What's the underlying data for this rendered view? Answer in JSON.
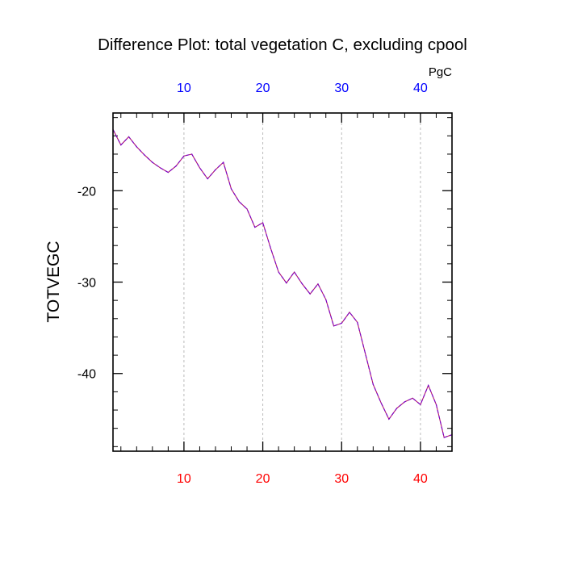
{
  "chart_data": {
    "type": "line",
    "title": "Difference Plot: total vegetation C, excluding cpool",
    "ylabel": "TOTVEGC",
    "xlabel": "",
    "units_label": "PgC",
    "xlim": [
      1,
      44
    ],
    "ylim": [
      -48.5,
      -11.5
    ],
    "x_major_ticks": [
      10,
      20,
      30,
      40
    ],
    "x_minor_step": 2,
    "y_major_ticks": [
      -20,
      -30,
      -40
    ],
    "y_minor_step": 2,
    "grid_vertical_dashed": true,
    "colors": {
      "line_primary": "#7a00c8",
      "line_secondary": "#b01a6a",
      "bottom_ticks": "#ff0000",
      "top_ticks": "#0000ff",
      "grid": "#bbbbbb",
      "text": "#000000"
    },
    "series": [
      {
        "values": [
          [
            1,
            -13.3
          ],
          [
            2,
            -15.0
          ],
          [
            3,
            -14.1
          ],
          [
            4,
            -15.2
          ],
          [
            5,
            -16.1
          ],
          [
            6,
            -16.9
          ],
          [
            7,
            -17.5
          ],
          [
            8,
            -18.0
          ],
          [
            9,
            -17.3
          ],
          [
            10,
            -16.2
          ],
          [
            11,
            -16.0
          ],
          [
            12,
            -17.5
          ],
          [
            13,
            -18.7
          ],
          [
            14,
            -17.7
          ],
          [
            15,
            -16.9
          ],
          [
            16,
            -19.8
          ],
          [
            17,
            -21.2
          ],
          [
            18,
            -22.0
          ],
          [
            19,
            -24.0
          ],
          [
            20,
            -23.5
          ],
          [
            21,
            -26.3
          ],
          [
            22,
            -28.9
          ],
          [
            23,
            -30.1
          ],
          [
            24,
            -28.9
          ],
          [
            25,
            -30.2
          ],
          [
            26,
            -31.3
          ],
          [
            27,
            -30.2
          ],
          [
            28,
            -31.9
          ],
          [
            29,
            -34.8
          ],
          [
            30,
            -34.5
          ],
          [
            31,
            -33.3
          ],
          [
            32,
            -34.4
          ],
          [
            33,
            -37.8
          ],
          [
            34,
            -41.2
          ],
          [
            35,
            -43.2
          ],
          [
            36,
            -45.0
          ],
          [
            37,
            -43.8
          ],
          [
            38,
            -43.1
          ],
          [
            39,
            -42.7
          ],
          [
            40,
            -43.4
          ],
          [
            41,
            -41.3
          ],
          [
            42,
            -43.4
          ],
          [
            43,
            -47.0
          ],
          [
            44,
            -46.7
          ]
        ]
      }
    ]
  }
}
